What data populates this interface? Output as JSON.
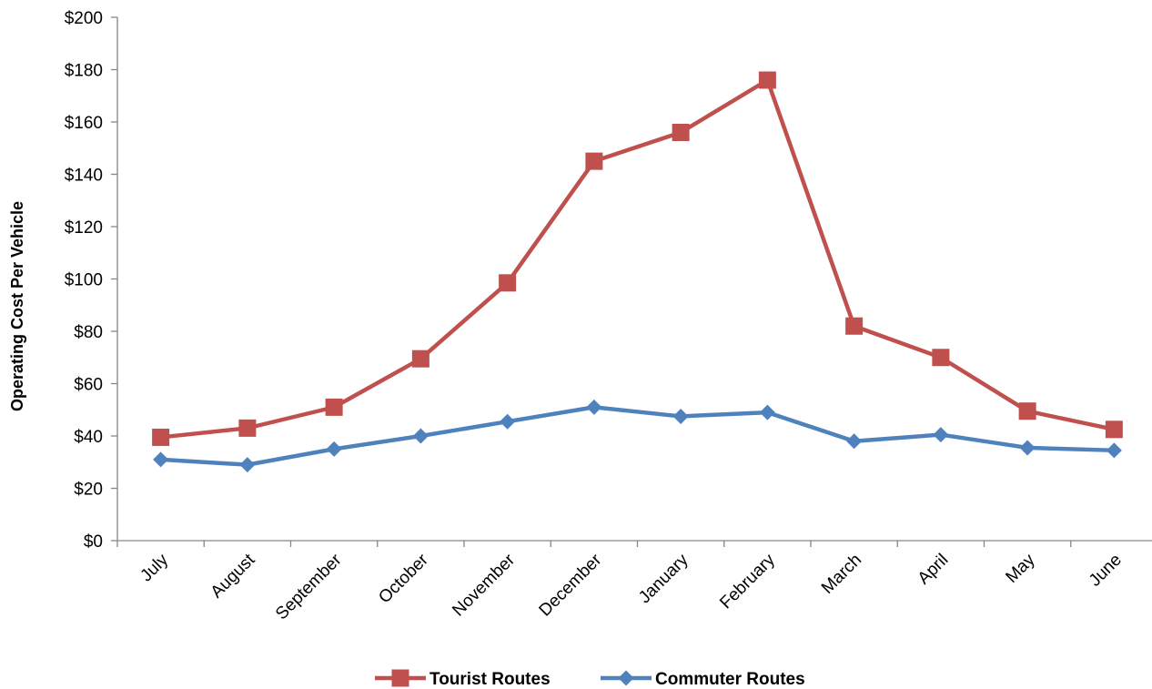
{
  "chart_data": {
    "type": "line",
    "title": "",
    "xlabel": "",
    "ylabel": "Operating Cost Per Vehicle",
    "categories": [
      "July",
      "August",
      "September",
      "October",
      "November",
      "December",
      "January",
      "February",
      "March",
      "April",
      "May",
      "June"
    ],
    "ylim": [
      0,
      200
    ],
    "yticks": [
      "$0",
      "$20",
      "$40",
      "$60",
      "$80",
      "$100",
      "$120",
      "$140",
      "$160",
      "$180",
      "$200"
    ],
    "grid": false,
    "legend_position": "bottom",
    "series": [
      {
        "name": "Tourist Routes",
        "color": "#C0504D",
        "marker": "square",
        "values": [
          39.5,
          43,
          51,
          69.5,
          98.5,
          145,
          156,
          176,
          82,
          70,
          49.5,
          42.5
        ]
      },
      {
        "name": "Commuter Routes",
        "color": "#4F81BD",
        "marker": "diamond",
        "values": [
          31,
          29,
          35,
          40,
          45.5,
          51,
          47.5,
          49,
          38,
          40.5,
          35.5,
          34.5
        ]
      }
    ]
  }
}
